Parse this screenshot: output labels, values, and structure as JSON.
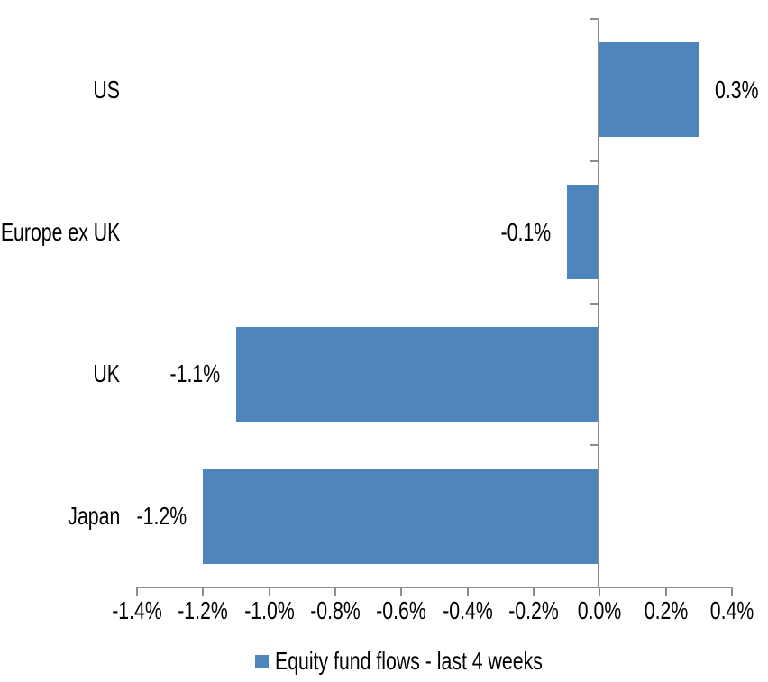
{
  "chart_data": {
    "type": "bar",
    "orientation": "horizontal",
    "title": "",
    "xlabel": "",
    "ylabel": "",
    "categories": [
      "US",
      "Europe ex UK",
      "UK",
      "Japan"
    ],
    "values": [
      0.3,
      -0.1,
      -1.1,
      -1.2
    ],
    "data_labels": [
      "0.3%",
      "-0.1%",
      "-1.1%",
      "-1.2%"
    ],
    "unit": "%",
    "xlim": [
      -1.4,
      0.4
    ],
    "x_tick_values": [
      -1.4,
      -1.2,
      -1.0,
      -0.8,
      -0.6,
      -0.4,
      -0.2,
      0.0,
      0.2,
      0.4
    ],
    "x_ticks": [
      "-1.4%",
      "-1.2%",
      "-1.0%",
      "-0.8%",
      "-0.6%",
      "-0.4%",
      "-0.2%",
      "0.0%",
      "0.2%",
      "0.4%"
    ],
    "grid": false,
    "legend": {
      "position": "bottom",
      "entries": [
        "Equity fund flows - last 4 weeks"
      ]
    },
    "colors": {
      "bar": "#4E86BC",
      "axis": "#8C8C8C",
      "text": "#000000",
      "background": "#FFFFFF"
    }
  }
}
